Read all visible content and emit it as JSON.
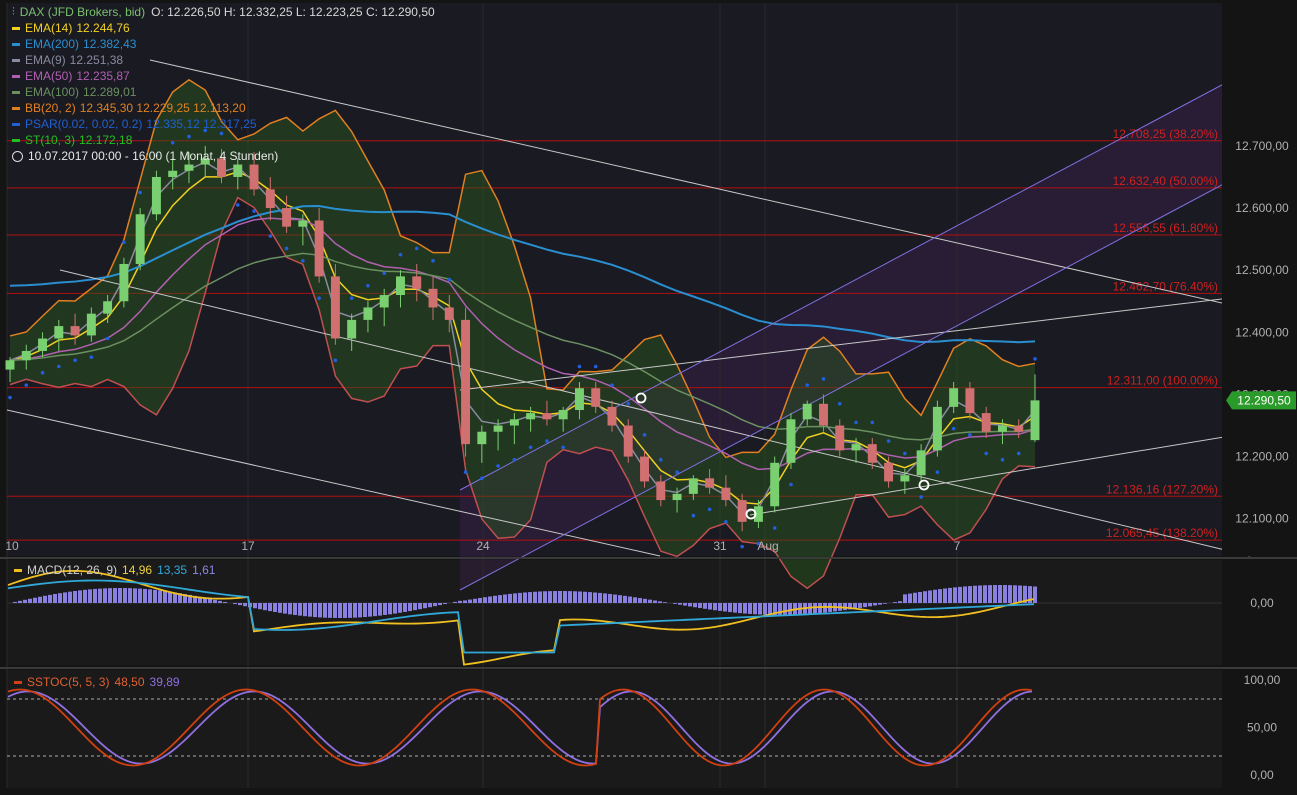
{
  "header": {
    "instrument": "DAX (JFD Brokers, bid)",
    "ohlc": "O: 12.226,50  H: 12.332,25  L: 12.223,25  C: 12.290,50",
    "period": "10.07.2017 00:00 - 16:00  (1 Monat, 4 Stunden)",
    "clock_icon": "clock-icon"
  },
  "indicators": [
    {
      "name": "EMA(14)",
      "values": "12.244,76",
      "color": "#f0d020"
    },
    {
      "name": "EMA(200)",
      "values": "12.382,43",
      "color": "#2a8fd0"
    },
    {
      "name": "EMA(9)",
      "values": "12.251,38",
      "color": "#8a8aa0"
    },
    {
      "name": "EMA(50)",
      "values": "12.235,87",
      "color": "#b060b0"
    },
    {
      "name": "EMA(100)",
      "values": "12.289,01",
      "color": "#6a9060"
    },
    {
      "name": "BB(20, 2)",
      "values": "12.345,30  12.229,25  12.113,20",
      "color": "#e08020"
    },
    {
      "name": "PSAR(0.02, 0.02, 0.2)",
      "values": "12.335,12  12.317,25",
      "color": "#2060d0"
    },
    {
      "name": "ST(10, 3)",
      "values": "12.172,18",
      "color": "#20c020"
    }
  ],
  "last_price": "12.290,50",
  "macd_legend": {
    "name": "MACD(12, 26, 9)",
    "v1": "14,96",
    "v2": "13,35",
    "v3": "1,61",
    "color": "#f0c020"
  },
  "sstoc_legend": {
    "name": "SSTOC(5, 5, 3)",
    "v1": "48,50",
    "v2": "39,89",
    "color": "#d04010"
  },
  "chart_data": {
    "type": "candlestick",
    "y_axis": {
      "ticks": [
        "12.700,00",
        "12.600,00",
        "12.500,00",
        "12.400,00",
        "12.300,00",
        "12.200,00",
        "12.100,00"
      ],
      "tick_values": [
        12700,
        12600,
        12500,
        12400,
        12300,
        12200,
        12100
      ],
      "range": [
        12040,
        12930
      ]
    },
    "x_axis": {
      "labels": [
        "10",
        "17",
        "24",
        "31",
        "Aug",
        "7"
      ]
    },
    "fib_levels": [
      {
        "label": "12.708,25 (38.20%)",
        "value": 12708.25
      },
      {
        "label": "12.632,40 (50.00%)",
        "value": 12632.4
      },
      {
        "label": "12.556,55 (61.80%)",
        "value": 12556.55
      },
      {
        "label": "12.462,70 (76.40%)",
        "value": 12462.7
      },
      {
        "label": "12.311,00 (100.00%)",
        "value": 12311.0
      },
      {
        "label": "12.136,16 (127.20%)",
        "value": 12136.16
      },
      {
        "label": "12.065,45 (138.20%)",
        "value": 12065.45
      }
    ],
    "macd_axis": {
      "ticks": [
        "0,00"
      ]
    },
    "sstoc_axis": {
      "ticks": [
        "100,00",
        "50,00",
        "0,00"
      ]
    },
    "candles": [
      [
        12340,
        12360,
        12320,
        12355
      ],
      [
        12355,
        12380,
        12340,
        12370
      ],
      [
        12370,
        12400,
        12360,
        12390
      ],
      [
        12390,
        12420,
        12370,
        12410
      ],
      [
        12410,
        12430,
        12380,
        12395
      ],
      [
        12395,
        12440,
        12385,
        12430
      ],
      [
        12430,
        12460,
        12415,
        12450
      ],
      [
        12450,
        12520,
        12440,
        12510
      ],
      [
        12510,
        12600,
        12500,
        12590
      ],
      [
        12590,
        12660,
        12580,
        12650
      ],
      [
        12650,
        12680,
        12630,
        12660
      ],
      [
        12660,
        12690,
        12640,
        12670
      ],
      [
        12670,
        12700,
        12650,
        12680
      ],
      [
        12680,
        12695,
        12640,
        12650
      ],
      [
        12650,
        12680,
        12630,
        12670
      ],
      [
        12670,
        12690,
        12620,
        12630
      ],
      [
        12630,
        12650,
        12580,
        12600
      ],
      [
        12600,
        12620,
        12560,
        12570
      ],
      [
        12570,
        12590,
        12540,
        12580
      ],
      [
        12580,
        12600,
        12480,
        12490
      ],
      [
        12490,
        12510,
        12380,
        12390
      ],
      [
        12390,
        12430,
        12370,
        12420
      ],
      [
        12420,
        12450,
        12400,
        12440
      ],
      [
        12440,
        12470,
        12410,
        12460
      ],
      [
        12460,
        12500,
        12440,
        12490
      ],
      [
        12490,
        12510,
        12450,
        12470
      ],
      [
        12470,
        12490,
        12420,
        12440
      ],
      [
        12440,
        12460,
        12400,
        12420
      ],
      [
        12420,
        12440,
        12200,
        12220
      ],
      [
        12220,
        12250,
        12190,
        12240
      ],
      [
        12240,
        12260,
        12210,
        12250
      ],
      [
        12250,
        12270,
        12220,
        12260
      ],
      [
        12260,
        12280,
        12240,
        12270
      ],
      [
        12270,
        12290,
        12250,
        12260
      ],
      [
        12260,
        12280,
        12240,
        12275
      ],
      [
        12275,
        12320,
        12260,
        12310
      ],
      [
        12310,
        12320,
        12270,
        12280
      ],
      [
        12280,
        12290,
        12240,
        12250
      ],
      [
        12250,
        12260,
        12190,
        12200
      ],
      [
        12200,
        12210,
        12150,
        12160
      ],
      [
        12160,
        12170,
        12120,
        12130
      ],
      [
        12130,
        12150,
        12110,
        12140
      ],
      [
        12140,
        12170,
        12130,
        12165
      ],
      [
        12165,
        12180,
        12140,
        12150
      ],
      [
        12150,
        12170,
        12120,
        12130
      ],
      [
        12130,
        12140,
        12080,
        12095
      ],
      [
        12095,
        12130,
        12085,
        12120
      ],
      [
        12120,
        12200,
        12110,
        12190
      ],
      [
        12190,
        12270,
        12180,
        12260
      ],
      [
        12260,
        12290,
        12250,
        12285
      ],
      [
        12285,
        12300,
        12240,
        12250
      ],
      [
        12250,
        12260,
        12200,
        12210
      ],
      [
        12210,
        12230,
        12190,
        12220
      ],
      [
        12220,
        12230,
        12180,
        12190
      ],
      [
        12190,
        12200,
        12150,
        12160
      ],
      [
        12160,
        12180,
        12140,
        12170
      ],
      [
        12170,
        12220,
        12160,
        12210
      ],
      [
        12210,
        12290,
        12200,
        12280
      ],
      [
        12280,
        12320,
        12270,
        12310
      ],
      [
        12310,
        12320,
        12260,
        12270
      ],
      [
        12270,
        12280,
        12230,
        12240
      ],
      [
        12240,
        12260,
        12220,
        12250
      ],
      [
        12250,
        12260,
        12230,
        12240
      ],
      [
        12226.5,
        12332.25,
        12223.25,
        12290.5
      ]
    ]
  }
}
